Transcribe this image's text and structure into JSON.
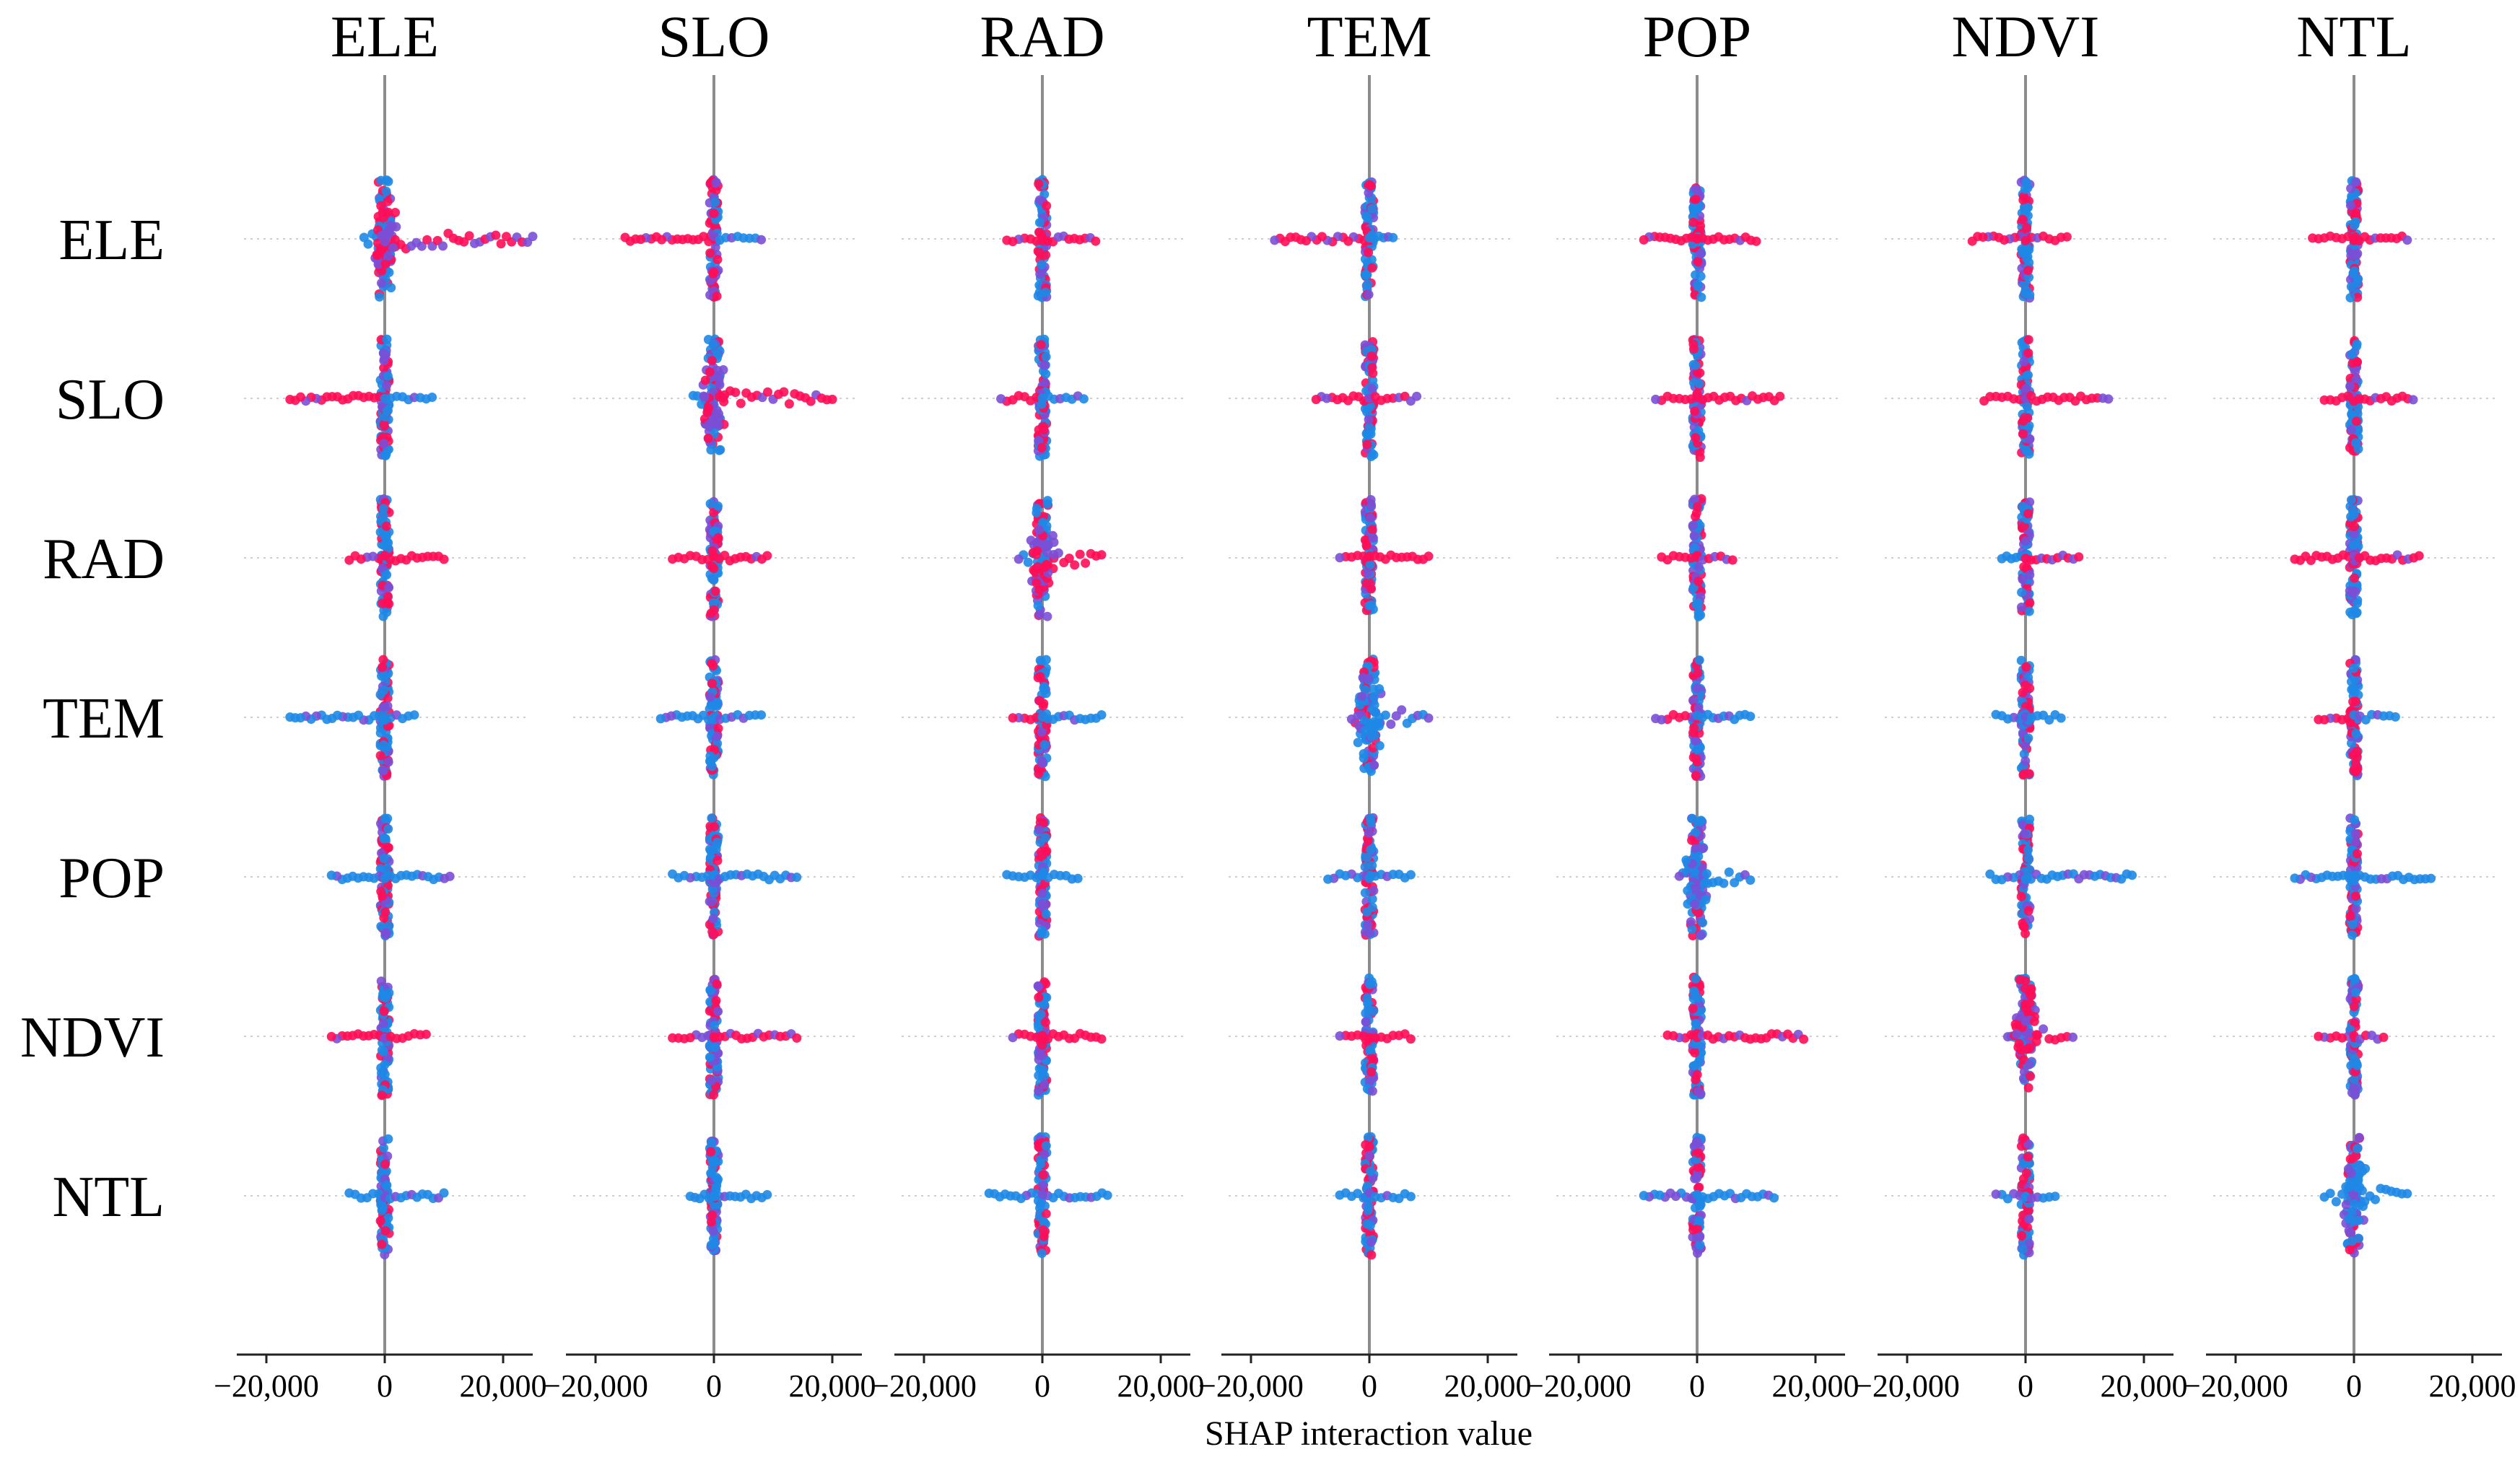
{
  "chart_data": {
    "type": "scatter",
    "subtype": "shap-interaction-beeswarm-grid",
    "title": "",
    "features": [
      "ELE",
      "SLO",
      "RAD",
      "TEM",
      "POP",
      "NDVI",
      "NTL"
    ],
    "xlabel": "SHAP interaction value",
    "xlim": [
      -25000,
      25000
    ],
    "xticks": [
      -20000,
      0,
      20000
    ],
    "xtick_labels": [
      "−20,000",
      "0",
      "20,000"
    ],
    "grid": false,
    "color_scale": {
      "low": "#1E88E5",
      "mid": "#7A4FD6",
      "high": "#FF0D57"
    },
    "ranges": [
      [
        {
          "min": -3500,
          "max": 25000,
          "neg": "blue",
          "pos": "red"
        },
        {
          "min": -15000,
          "max": 8000,
          "neg": "red",
          "pos": "blue"
        },
        {
          "min": -6000,
          "max": 9000,
          "neg": "red",
          "pos": "red"
        },
        {
          "min": -16000,
          "max": 4000,
          "neg": "red",
          "pos": "blue"
        },
        {
          "min": -9000,
          "max": 10000,
          "neg": "red",
          "pos": "red"
        },
        {
          "min": -9000,
          "max": 7000,
          "neg": "red",
          "pos": "red"
        },
        {
          "min": -7000,
          "max": 9000,
          "neg": "red",
          "pos": "red"
        }
      ],
      [
        {
          "min": -16000,
          "max": 8000,
          "neg": "red",
          "pos": "blue"
        },
        {
          "min": -3500,
          "max": 20000,
          "neg": "blue",
          "pos": "red"
        },
        {
          "min": -7000,
          "max": 7000,
          "neg": "red",
          "pos": "blue"
        },
        {
          "min": -9000,
          "max": 8000,
          "neg": "red",
          "pos": "red"
        },
        {
          "min": -7000,
          "max": 14000,
          "neg": "red",
          "pos": "red"
        },
        {
          "min": -7000,
          "max": 14000,
          "neg": "red",
          "pos": "red"
        },
        {
          "min": -5000,
          "max": 10000,
          "neg": "red",
          "pos": "red"
        }
      ],
      [
        {
          "min": -6000,
          "max": 10000,
          "neg": "red",
          "pos": "red"
        },
        {
          "min": -7000,
          "max": 9000,
          "neg": "red",
          "pos": "red"
        },
        {
          "min": -4000,
          "max": 10000,
          "neg": "blue",
          "pos": "red"
        },
        {
          "min": -5000,
          "max": 10000,
          "neg": "red",
          "pos": "red"
        },
        {
          "min": -6000,
          "max": 6000,
          "neg": "red",
          "pos": "red"
        },
        {
          "min": -4000,
          "max": 9000,
          "neg": "blue",
          "pos": "red"
        },
        {
          "min": -10000,
          "max": 11000,
          "neg": "red",
          "pos": "red"
        }
      ],
      [
        {
          "min": -16000,
          "max": 5000,
          "neg": "blue",
          "pos": "blue"
        },
        {
          "min": -9000,
          "max": 8000,
          "neg": "blue",
          "pos": "blue"
        },
        {
          "min": -5000,
          "max": 10000,
          "neg": "red",
          "pos": "blue"
        },
        {
          "min": -3000,
          "max": 10000,
          "neg": "red",
          "pos": "blue"
        },
        {
          "min": -7000,
          "max": 9000,
          "neg": "red",
          "pos": "blue"
        },
        {
          "min": -5000,
          "max": 6000,
          "neg": "blue",
          "pos": "blue"
        },
        {
          "min": -6000,
          "max": 7000,
          "neg": "red",
          "pos": "blue"
        }
      ],
      [
        {
          "min": -9000,
          "max": 11000,
          "neg": "blue",
          "pos": "blue"
        },
        {
          "min": -7000,
          "max": 14000,
          "neg": "blue",
          "pos": "blue"
        },
        {
          "min": -6000,
          "max": 6000,
          "neg": "blue",
          "pos": "blue"
        },
        {
          "min": -7000,
          "max": 7000,
          "neg": "blue",
          "pos": "blue"
        },
        {
          "min": -3000,
          "max": 9000,
          "neg": "blue",
          "pos": "blue"
        },
        {
          "min": -6000,
          "max": 18000,
          "neg": "blue",
          "pos": "blue"
        },
        {
          "min": -10000,
          "max": 13000,
          "neg": "blue",
          "pos": "blue"
        }
      ],
      [
        {
          "min": -9000,
          "max": 7000,
          "neg": "red",
          "pos": "red"
        },
        {
          "min": -7000,
          "max": 14000,
          "neg": "red",
          "pos": "red"
        },
        {
          "min": -5000,
          "max": 10000,
          "neg": "red",
          "pos": "red"
        },
        {
          "min": -5000,
          "max": 7000,
          "neg": "red",
          "pos": "red"
        },
        {
          "min": -5000,
          "max": 18000,
          "neg": "red",
          "pos": "red"
        },
        {
          "min": -3000,
          "max": 8000,
          "neg": "blue",
          "pos": "red"
        },
        {
          "min": -6000,
          "max": 5000,
          "neg": "red",
          "pos": "red"
        }
      ],
      [
        {
          "min": -6000,
          "max": 10000,
          "neg": "blue",
          "pos": "blue"
        },
        {
          "min": -4000,
          "max": 9000,
          "neg": "blue",
          "pos": "blue"
        },
        {
          "min": -9000,
          "max": 11000,
          "neg": "blue",
          "pos": "blue"
        },
        {
          "min": -5000,
          "max": 7000,
          "neg": "blue",
          "pos": "blue"
        },
        {
          "min": -9000,
          "max": 13000,
          "neg": "blue",
          "pos": "blue"
        },
        {
          "min": -5000,
          "max": 5000,
          "neg": "blue",
          "pos": "blue"
        },
        {
          "min": -5000,
          "max": 9000,
          "neg": "blue",
          "pos": "blue"
        }
      ]
    ]
  }
}
